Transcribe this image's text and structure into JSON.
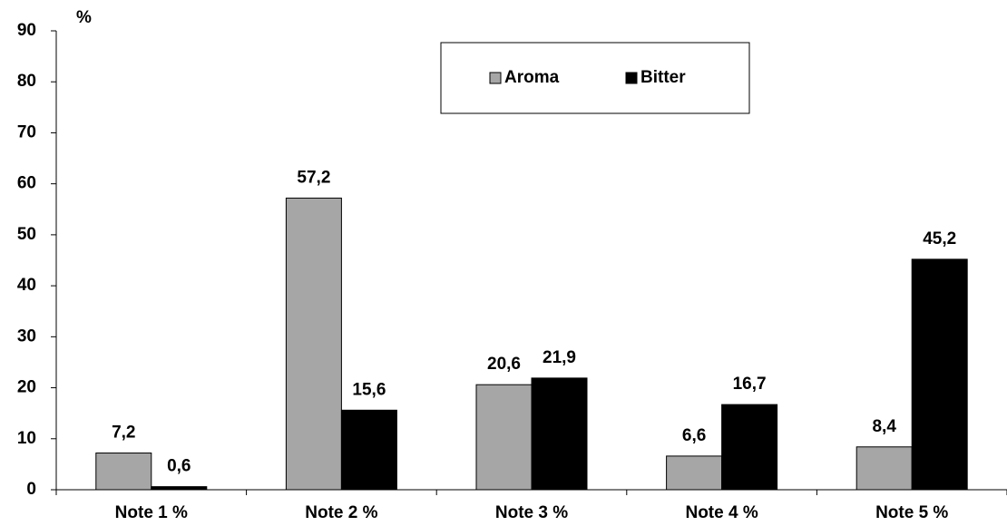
{
  "chart_data": {
    "type": "bar",
    "y_axis_label": "%",
    "categories": [
      "Note 1 %",
      "Note 2 %",
      "Note 3 %",
      "Note 4 %",
      "Note 5 %"
    ],
    "series": [
      {
        "name": "Aroma",
        "color": "#a6a6a6",
        "values": [
          7.2,
          57.2,
          20.6,
          6.6,
          8.4
        ],
        "value_labels": [
          "7,2",
          "57,2",
          "20,6",
          "6,6",
          "8,4"
        ]
      },
      {
        "name": "Bitter",
        "color": "#000000",
        "values": [
          0.6,
          15.6,
          21.9,
          16.7,
          45.2
        ],
        "value_labels": [
          "0,6",
          "15,6",
          "21,9",
          "16,7",
          "45,2"
        ]
      }
    ],
    "ylim": [
      0,
      90
    ],
    "yticks": [
      0,
      10,
      20,
      30,
      40,
      50,
      60,
      70,
      80,
      90
    ],
    "grid": false,
    "legend": "top"
  }
}
